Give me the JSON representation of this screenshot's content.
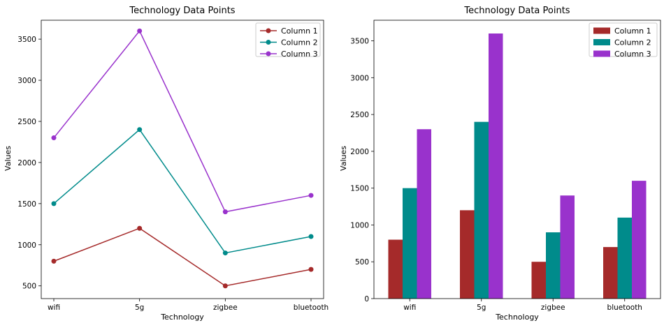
{
  "chart_data": [
    {
      "type": "line",
      "title": "Technology Data Points",
      "xlabel": "Technology",
      "ylabel": "Values",
      "categories": [
        "wifi",
        "5g",
        "zigbee",
        "bluetooth"
      ],
      "ylim": [
        345,
        3730
      ],
      "yticks": [
        500,
        1000,
        1500,
        2000,
        2500,
        3000,
        3500
      ],
      "legend": "top-right",
      "grid": false,
      "series": [
        {
          "name": "Column 1",
          "color": "#a52a2a",
          "values": [
            800,
            1200,
            500,
            700
          ]
        },
        {
          "name": "Column 2",
          "color": "#008b8b",
          "values": [
            1500,
            2400,
            900,
            1100
          ]
        },
        {
          "name": "Column 3",
          "color": "#9932cc",
          "values": [
            2300,
            3600,
            1400,
            1600
          ]
        }
      ]
    },
    {
      "type": "bar",
      "title": "Technology Data Points",
      "xlabel": "Technology",
      "ylabel": "Values",
      "categories": [
        "wifi",
        "5g",
        "zigbee",
        "bluetooth"
      ],
      "ylim": [
        0,
        3780
      ],
      "yticks": [
        0,
        500,
        1000,
        1500,
        2000,
        2500,
        3000,
        3500
      ],
      "legend": "top-right",
      "grid": false,
      "series": [
        {
          "name": "Column 1",
          "color": "#a52a2a",
          "values": [
            800,
            1200,
            500,
            700
          ]
        },
        {
          "name": "Column 2",
          "color": "#008b8b",
          "values": [
            1500,
            2400,
            900,
            1100
          ]
        },
        {
          "name": "Column 3",
          "color": "#9932cc",
          "values": [
            2300,
            3600,
            1400,
            1600
          ]
        }
      ]
    }
  ]
}
